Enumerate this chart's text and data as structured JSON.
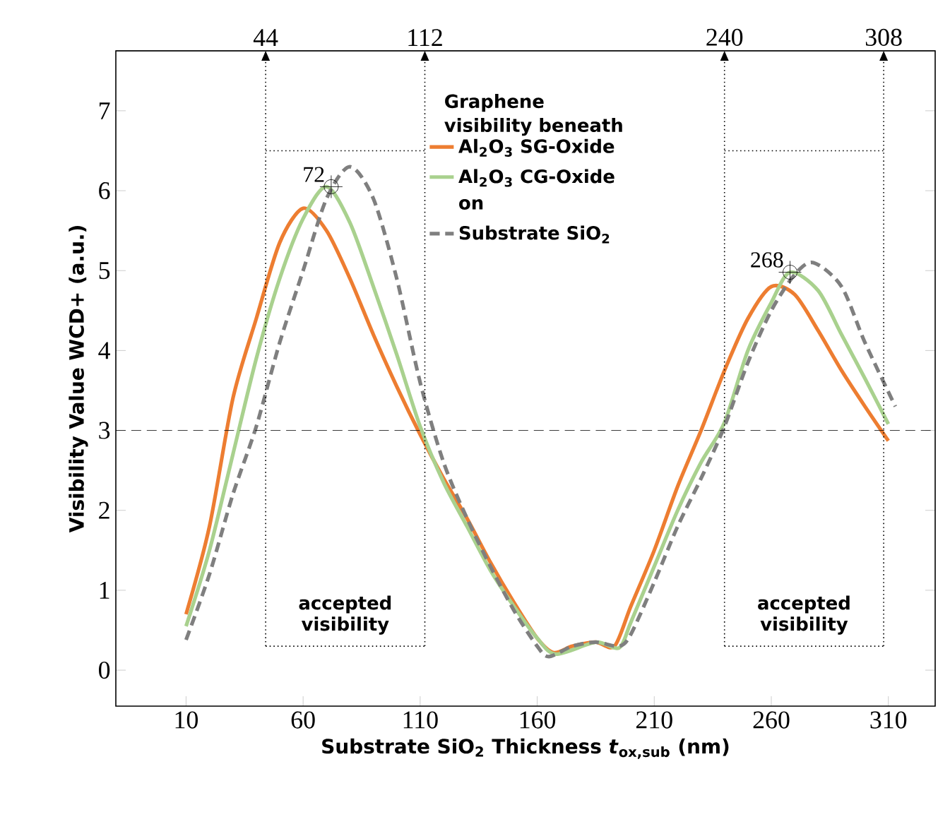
{
  "chart_data": {
    "type": "line",
    "xlabel": "Substrate SiO$_{2}$ Thickness *t*$_{ox,sub}$ (nm)",
    "ylabel": "Visibility Value WCD+ (a.u.)",
    "legend_title": "Graphene visibility beneath",
    "legend": "top",
    "grid": false,
    "marker": "none",
    "xlim": [
      -20,
      330
    ],
    "ylim": [
      -0.45,
      7.75
    ],
    "xticks": [
      10,
      60,
      110,
      160,
      210,
      260,
      310
    ],
    "yticks": [
      0,
      1,
      2,
      3,
      4,
      5,
      6,
      7
    ],
    "x2lim": [
      -20,
      330
    ],
    "x2ticks": [
      44,
      112,
      240,
      308
    ],
    "series": [
      {
        "name": "Al$_{2}$O$_{3}$ SG-Oxide",
        "color": "#ed7d31",
        "line_style": "solid",
        "x": [
          10,
          20,
          30,
          40,
          50,
          60,
          70,
          80,
          90,
          100,
          110,
          120,
          130,
          140,
          150,
          160,
          167,
          175,
          185,
          193,
          200,
          210,
          220,
          230,
          240,
          250,
          260,
          270,
          280,
          290,
          300,
          310
        ],
        "values": [
          0.7,
          1.8,
          3.4,
          4.4,
          5.35,
          5.78,
          5.5,
          4.9,
          4.2,
          3.55,
          2.95,
          2.4,
          1.9,
          1.35,
          0.85,
          0.4,
          0.22,
          0.3,
          0.35,
          0.3,
          0.8,
          1.5,
          2.3,
          3.0,
          3.75,
          4.4,
          4.8,
          4.7,
          4.25,
          3.75,
          3.3,
          2.87
        ]
      },
      {
        "name": "Al$_{2}$O$_{3}$ CG-Oxide",
        "color": "#a9d18e",
        "line_style": "solid",
        "x": [
          10,
          20,
          30,
          40,
          50,
          60,
          70,
          80,
          90,
          100,
          110,
          120,
          130,
          140,
          150,
          160,
          168,
          185,
          195,
          200,
          210,
          220,
          230,
          240,
          250,
          260,
          268,
          280,
          290,
          300,
          310
        ],
        "values": [
          0.55,
          1.5,
          2.7,
          3.9,
          4.9,
          5.65,
          6.05,
          5.6,
          4.8,
          3.95,
          3.05,
          2.35,
          1.8,
          1.25,
          0.8,
          0.4,
          0.2,
          0.35,
          0.28,
          0.6,
          1.3,
          2.0,
          2.6,
          3.1,
          4.0,
          4.6,
          4.98,
          4.75,
          4.2,
          3.65,
          3.08
        ]
      },
      {
        "name": "Substrate SiO$_{2}$",
        "color": "#7f7f7f",
        "line_style": "dashed",
        "x": [
          10,
          20,
          30,
          40,
          50,
          60,
          70,
          80,
          90,
          100,
          110,
          120,
          130,
          140,
          150,
          160,
          165,
          175,
          185,
          195,
          200,
          210,
          220,
          230,
          240,
          250,
          260,
          270,
          278,
          290,
          300,
          313
        ],
        "values": [
          0.38,
          1.2,
          2.2,
          3.05,
          4.1,
          5.0,
          5.9,
          6.3,
          5.9,
          4.9,
          3.6,
          2.6,
          1.9,
          1.3,
          0.75,
          0.3,
          0.17,
          0.3,
          0.35,
          0.3,
          0.45,
          1.1,
          1.8,
          2.4,
          3.05,
          3.85,
          4.5,
          4.95,
          5.1,
          4.8,
          4.1,
          3.3
        ]
      }
    ],
    "ref_lines": [
      {
        "axis": "y",
        "value": 3,
        "line_style": "dashed"
      },
      {
        "axis": "x",
        "value": 44,
        "line_style": "dotted"
      },
      {
        "axis": "x",
        "value": 112,
        "line_style": "dotted"
      },
      {
        "axis": "x",
        "value": 240,
        "line_style": "dotted"
      },
      {
        "axis": "x",
        "value": 308,
        "line_style": "dotted"
      }
    ],
    "annotations": [
      {
        "text": "72",
        "x": 72,
        "y": 6.05
      },
      {
        "text": "268",
        "x": 268,
        "y": 4.98
      },
      "accepted visibility",
      "accepted visibility",
      "on"
    ]
  }
}
